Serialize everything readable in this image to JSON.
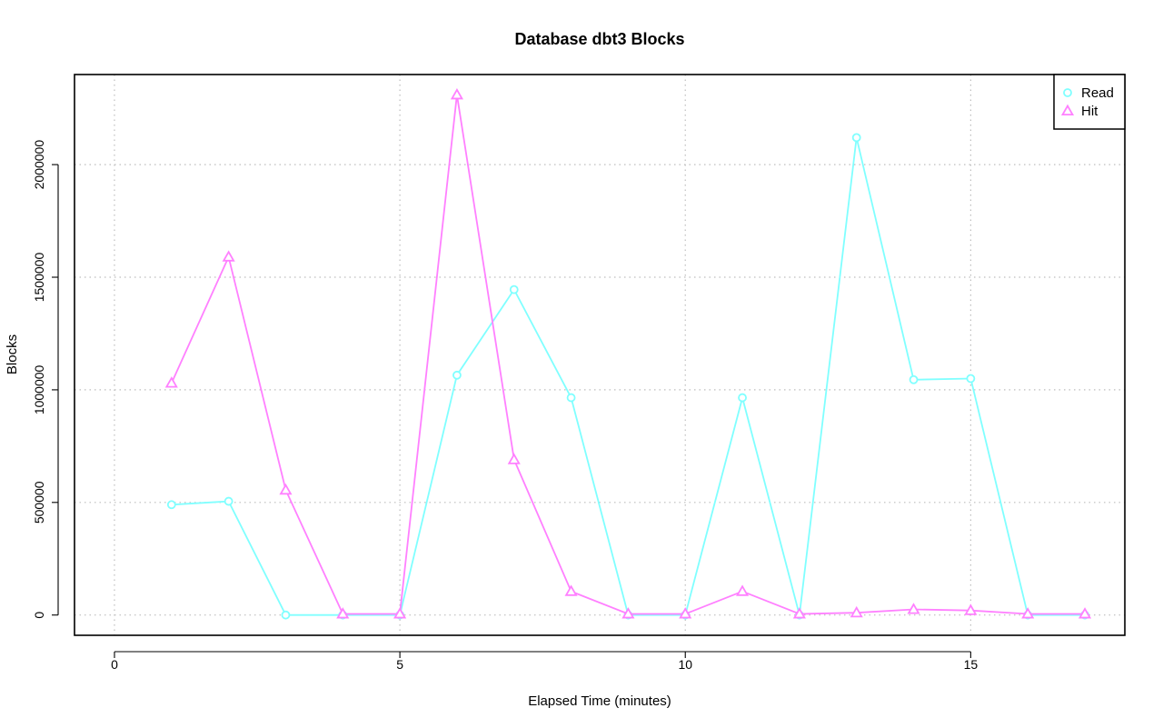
{
  "chart_data": {
    "type": "line",
    "title": "Database dbt3 Blocks",
    "xlabel": "Elapsed Time (minutes)",
    "ylabel": "Blocks",
    "xlim": [
      -0.7,
      17.7
    ],
    "ylim": [
      -90000,
      2400000
    ],
    "x_ticks": [
      0,
      5,
      10,
      15
    ],
    "y_ticks": [
      0,
      500000,
      1000000,
      1500000,
      2000000
    ],
    "grid": true,
    "legend_position": "top-right",
    "x": [
      1,
      2,
      3,
      4,
      5,
      6,
      7,
      8,
      9,
      10,
      11,
      12,
      13,
      14,
      15,
      16,
      17
    ],
    "series": [
      {
        "name": "Read",
        "color": "#80ffff",
        "marker": "circle",
        "values": [
          490000,
          505000,
          0,
          0,
          0,
          1065000,
          1445000,
          965000,
          0,
          0,
          965000,
          0,
          2120000,
          1045000,
          1050000,
          0,
          0
        ]
      },
      {
        "name": "Hit",
        "color": "#ff80ff",
        "marker": "triangle",
        "values": [
          1030000,
          1590000,
          555000,
          5000,
          5000,
          2310000,
          690000,
          105000,
          5000,
          5000,
          105000,
          5000,
          10000,
          25000,
          20000,
          5000,
          5000
        ]
      }
    ]
  }
}
